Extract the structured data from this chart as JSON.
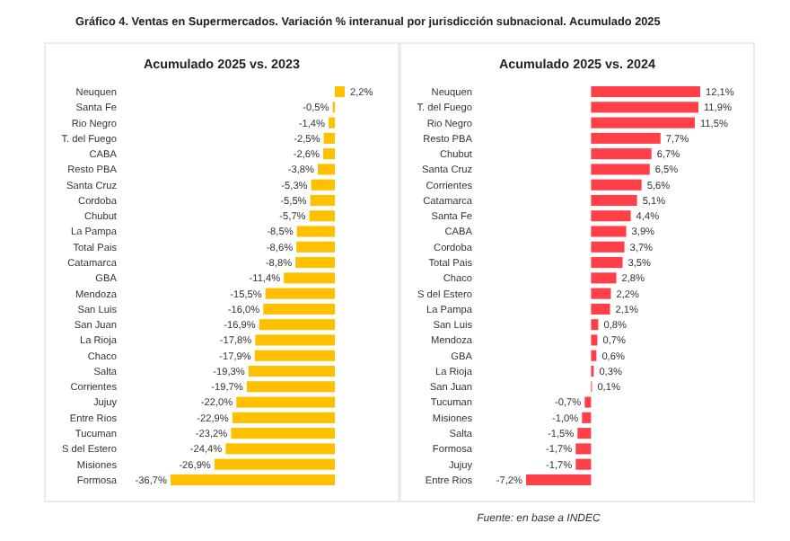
{
  "chart_data": [
    {
      "type": "bar",
      "orientation": "horizontal",
      "title": "Gráfico 4. Ventas en Supermercados. Variación % interanual por jurisdicción subnacional. Acumulado 2025",
      "subtitle": "Acumulado 2025 vs. 2023",
      "color": "#ffc000",
      "categories": [
        "Neuquen",
        "Santa Fe",
        "Rio Negro",
        "T. del Fuego",
        "CABA",
        "Resto PBA",
        "Santa Cruz",
        "Cordoba",
        "Chubut",
        "La Pampa",
        "Total Pais",
        "Catamarca",
        "GBA",
        "Mendoza",
        "San Luis",
        "San Juan",
        "La Rioja",
        "Chaco",
        "Salta",
        "Corrientes",
        "Jujuy",
        "Entre Rios",
        "Tucuman",
        "S del Estero",
        "Misiones",
        "Formosa"
      ],
      "values": [
        2.2,
        -0.5,
        -1.4,
        -2.5,
        -2.6,
        -3.8,
        -5.3,
        -5.5,
        -5.7,
        -8.5,
        -8.6,
        -8.8,
        -11.4,
        -15.5,
        -16.0,
        -16.9,
        -17.8,
        -17.9,
        -19.3,
        -19.7,
        -22.0,
        -22.9,
        -23.2,
        -24.4,
        -26.9,
        -36.7
      ],
      "value_labels": [
        "2,2%",
        "-0,5%",
        "-1,4%",
        "-2,5%",
        "-2,6%",
        "-3,8%",
        "-5,3%",
        "-5,5%",
        "-5,7%",
        "-8,5%",
        "-8,6%",
        "-8,8%",
        "-11,4%",
        "-15,5%",
        "-16,0%",
        "-16,9%",
        "-17,8%",
        "-17,9%",
        "-19,3%",
        "-19,7%",
        "-22,0%",
        "-22,9%",
        "-23,2%",
        "-24,4%",
        "-26,9%",
        "-36,7%"
      ]
    },
    {
      "type": "bar",
      "orientation": "horizontal",
      "subtitle": "Acumulado 2025 vs. 2024",
      "color": "#ff4049",
      "categories": [
        "Neuquen",
        "T. del Fuego",
        "Rio Negro",
        "Resto PBA",
        "Chubut",
        "Santa Cruz",
        "Corrientes",
        "Catamarca",
        "Santa Fe",
        "CABA",
        "Cordoba",
        "Total Pais",
        "Chaco",
        "S del Estero",
        "La Pampa",
        "San Luis",
        "Mendoza",
        "GBA",
        "La Rioja",
        "San Juan",
        "Tucuman",
        "Misiones",
        "Salta",
        "Formosa",
        "Jujuy",
        "Entre Rios"
      ],
      "values": [
        12.1,
        11.9,
        11.5,
        7.7,
        6.7,
        6.5,
        5.6,
        5.1,
        4.4,
        3.9,
        3.7,
        3.5,
        2.8,
        2.2,
        2.1,
        0.8,
        0.7,
        0.6,
        0.3,
        0.1,
        -0.7,
        -1.0,
        -1.5,
        -1.7,
        -1.7,
        -7.2
      ],
      "value_labels": [
        "12,1%",
        "11,9%",
        "11,5%",
        "7,7%",
        "6,7%",
        "6,5%",
        "5,6%",
        "5,1%",
        "4,4%",
        "3,9%",
        "3,7%",
        "3,5%",
        "2,8%",
        "2,2%",
        "2,1%",
        "0,8%",
        "0,7%",
        "0,6%",
        "0,3%",
        "0,1%",
        "-0,7%",
        "-1,0%",
        "-1,5%",
        "-1,7%",
        "-1,7%",
        "-7,2%"
      ],
      "annotations": [
        "Fuente: en base a INDEC"
      ]
    }
  ]
}
